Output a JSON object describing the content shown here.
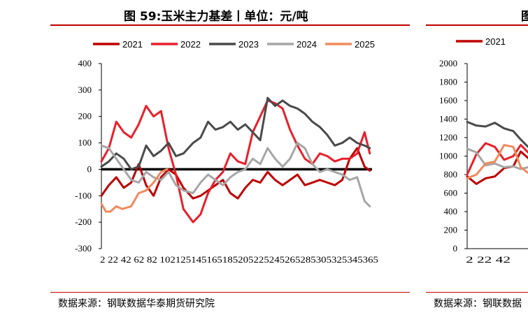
{
  "left_panel": {
    "title": "图 59:玉米主力基差丨单位：元/吨",
    "source": "数据来源：钢联数据华泰期货研究院"
  },
  "right_panel": {
    "title": "图",
    "source": "数据来源：钢联数据"
  },
  "chart_data": [
    {
      "type": "line",
      "title": "图 59:玉米主力基差丨单位：元/吨",
      "xlabel": "",
      "ylabel": "",
      "ylim": [
        -300,
        400
      ],
      "yticks": [
        -300,
        -200,
        -100,
        0,
        100,
        200,
        300,
        400
      ],
      "xlim": [
        2,
        365
      ],
      "xticks": [
        2,
        22,
        42,
        62,
        82,
        102,
        125,
        145,
        165,
        185,
        205,
        225,
        245,
        265,
        285,
        305,
        325,
        345,
        365
      ],
      "xtick_labels": "2 22 42 62 82 102125145165185205225245265285305325345365",
      "legend": [
        "2021",
        "2022",
        "2023",
        "2024",
        "2025"
      ],
      "zero_line": true,
      "series": [
        {
          "name": "2021",
          "color": "#c00000",
          "x": [
            2,
            12,
            22,
            32,
            42,
            52,
            62,
            72,
            82,
            92,
            102,
            112,
            125,
            135,
            145,
            155,
            165,
            175,
            185,
            195,
            205,
            215,
            225,
            235,
            245,
            255,
            265,
            275,
            285,
            295,
            305,
            315,
            325,
            335,
            345,
            355,
            362
          ],
          "values": [
            -100,
            -60,
            -30,
            -70,
            -50,
            20,
            -60,
            -100,
            -30,
            0,
            -20,
            -70,
            -110,
            -100,
            -80,
            -60,
            -40,
            -90,
            -110,
            -70,
            -40,
            -50,
            -10,
            -40,
            -60,
            -40,
            -20,
            -60,
            -50,
            -40,
            -50,
            -60,
            -40,
            40,
            80,
            10,
            -5
          ]
        },
        {
          "name": "2022",
          "color": "#e8202a",
          "x": [
            2,
            12,
            22,
            32,
            42,
            52,
            62,
            72,
            82,
            92,
            102,
            112,
            125,
            135,
            145,
            155,
            165,
            175,
            185,
            195,
            205,
            215,
            225,
            235,
            245,
            255,
            265,
            275,
            285,
            295,
            305,
            315,
            325,
            335,
            345,
            355,
            362
          ],
          "values": [
            30,
            80,
            180,
            140,
            120,
            170,
            240,
            200,
            220,
            80,
            -20,
            -150,
            -200,
            -170,
            -90,
            -40,
            -10,
            60,
            30,
            20,
            140,
            200,
            260,
            250,
            230,
            150,
            90,
            40,
            20,
            60,
            50,
            30,
            40,
            40,
            60,
            140,
            60
          ]
        },
        {
          "name": "2023",
          "color": "#4a4a4a",
          "x": [
            2,
            12,
            22,
            32,
            42,
            52,
            62,
            72,
            82,
            92,
            102,
            112,
            125,
            135,
            145,
            155,
            165,
            175,
            185,
            195,
            205,
            215,
            225,
            235,
            245,
            255,
            265,
            275,
            285,
            295,
            305,
            315,
            325,
            335,
            345,
            355,
            362
          ],
          "values": [
            10,
            30,
            60,
            40,
            0,
            10,
            90,
            50,
            70,
            100,
            50,
            60,
            100,
            120,
            180,
            150,
            160,
            180,
            150,
            170,
            140,
            110,
            270,
            240,
            260,
            240,
            230,
            210,
            180,
            160,
            130,
            90,
            100,
            120,
            100,
            90,
            80
          ]
        },
        {
          "name": "2024",
          "color": "#a6a6a6",
          "x": [
            2,
            12,
            22,
            32,
            42,
            52,
            62,
            72,
            82,
            92,
            102,
            112,
            125,
            135,
            145,
            155,
            165,
            175,
            185,
            195,
            205,
            215,
            225,
            235,
            245,
            255,
            265,
            275,
            285,
            295,
            305,
            315,
            325,
            335,
            345,
            355,
            362
          ],
          "values": [
            90,
            80,
            40,
            0,
            -40,
            -50,
            -10,
            -30,
            -40,
            -10,
            -60,
            -80,
            -90,
            -50,
            -20,
            -40,
            -60,
            -30,
            -10,
            0,
            40,
            20,
            80,
            40,
            10,
            40,
            100,
            80,
            20,
            -10,
            0,
            -10,
            -20,
            -40,
            -30,
            -120,
            -140
          ]
        },
        {
          "name": "2025",
          "color": "#f08a5d",
          "x": [
            2,
            8,
            14,
            22,
            30,
            42,
            52,
            62,
            72,
            82,
            90
          ],
          "values": [
            -130,
            -160,
            -160,
            -140,
            -150,
            -140,
            -90,
            -80,
            -50,
            -10,
            0
          ]
        }
      ]
    },
    {
      "type": "line",
      "title": "图",
      "ylim": [
        0,
        2000
      ],
      "yticks": [
        0,
        200,
        400,
        600,
        800,
        1000,
        1200,
        1400,
        1600,
        1800,
        2000
      ],
      "xticks": [
        2,
        22,
        42
      ],
      "xtick_labels": "2 22 42",
      "legend": [
        "2021"
      ],
      "series": [
        {
          "name": "2021",
          "color": "#c00000",
          "x": [
            2,
            12,
            22,
            32,
            42,
            52,
            60,
            68,
            76
          ],
          "values": [
            780,
            700,
            760,
            780,
            870,
            890,
            1050,
            980,
            900
          ]
        },
        {
          "name": "2022",
          "color": "#e8202a",
          "x": [
            2,
            12,
            22,
            32,
            42,
            52,
            60,
            68,
            76
          ],
          "values": [
            800,
            1020,
            1140,
            1100,
            960,
            1000,
            1120,
            1040,
            1000
          ]
        },
        {
          "name": "2023",
          "color": "#4a4a4a",
          "x": [
            2,
            12,
            22,
            32,
            42,
            52,
            60,
            68,
            76
          ],
          "values": [
            1370,
            1330,
            1320,
            1360,
            1300,
            1270,
            1180,
            1100,
            1060
          ]
        },
        {
          "name": "2024",
          "color": "#a6a6a6",
          "x": [
            2,
            12,
            22,
            32,
            42,
            52,
            60,
            68,
            76
          ],
          "values": [
            1080,
            1040,
            900,
            920,
            880,
            890,
            860,
            880,
            850
          ]
        },
        {
          "name": "2025",
          "color": "#f08a5d",
          "x": [
            2,
            12,
            22,
            32,
            42,
            52,
            60,
            68,
            76
          ],
          "values": [
            760,
            800,
            920,
            940,
            1120,
            1100,
            880,
            820,
            860
          ]
        }
      ]
    }
  ]
}
